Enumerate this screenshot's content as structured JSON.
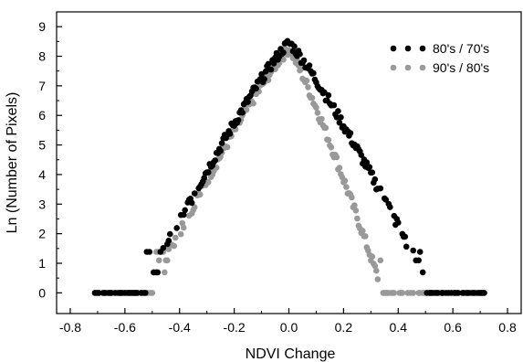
{
  "chart_data": {
    "type": "scatter",
    "title": "",
    "xlabel": "NDVI Change",
    "ylabel": "Ln (Number of Pixels)",
    "xlim": [
      -0.85,
      0.85
    ],
    "ylim": [
      -0.7,
      9.5
    ],
    "x_ticks": [
      -0.8,
      -0.6,
      -0.4,
      -0.2,
      0.0,
      0.2,
      0.4,
      0.6,
      0.8
    ],
    "x_tick_labels": [
      "-0.8",
      "-0.6",
      "-0.4",
      "-0.2",
      "0.0",
      "0.2",
      "0.4",
      "0.6",
      "0.8"
    ],
    "y_ticks": [
      0,
      1,
      2,
      3,
      4,
      5,
      6,
      7,
      8,
      9
    ],
    "y_tick_labels": [
      "0",
      "1",
      "2",
      "3",
      "4",
      "5",
      "6",
      "7",
      "8",
      "9"
    ],
    "grid": false,
    "legend_position": "top-right",
    "series": [
      {
        "name": "80's / 70's",
        "color": "#000000",
        "x_range": [
          -0.71,
          0.72
        ],
        "peak": 8.45,
        "width_left": 0.084,
        "width_right": 0.082,
        "tail_scale_left": 1.0,
        "tail_scale_right": 1.0
      },
      {
        "name": "90's / 80's",
        "color": "#999999",
        "x_range": [
          -0.66,
          0.58
        ],
        "peak": 8.25,
        "width_left": 0.082,
        "width_right": 0.055,
        "tail_scale_left": 1.0,
        "tail_scale_right": 1.0
      }
    ]
  }
}
